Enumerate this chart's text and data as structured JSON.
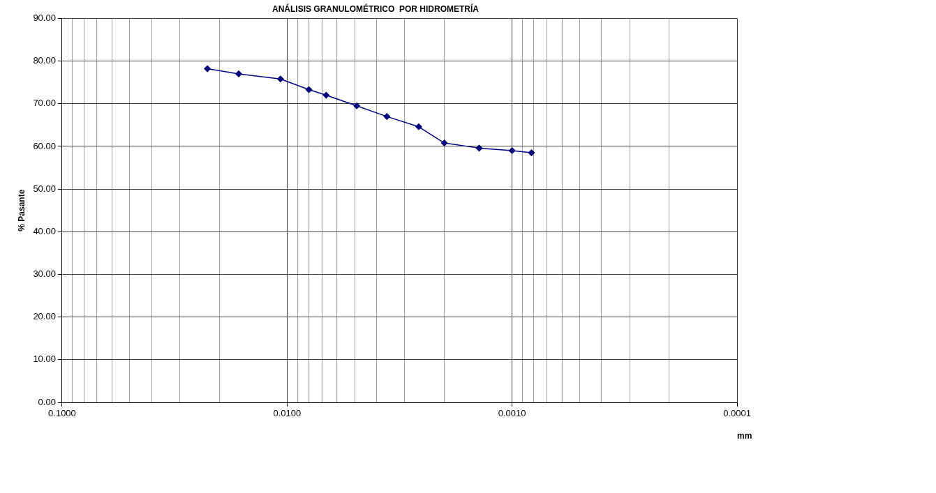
{
  "chart_data": {
    "type": "line",
    "title": "ANÁLISIS GRANULOMÉTRICO  POR HIDROMETRÍA",
    "xlabel": "mm",
    "ylabel": "% Pasante",
    "x": [
      0.0226,
      0.0164,
      0.0107,
      0.008,
      0.0067,
      0.0049,
      0.0036,
      0.0026,
      0.002,
      0.0014,
      0.001,
      0.00082
    ],
    "series": [
      {
        "color": "#000080",
        "values": [
          78.2,
          77.0,
          75.8,
          73.3,
          72.0,
          69.5,
          67.0,
          64.6,
          60.8,
          59.6,
          59.0,
          58.5
        ]
      }
    ],
    "log": "x",
    "xlim": [
      0.1,
      0.0001
    ],
    "xticks": [
      {
        "value": 0.1,
        "label": "0.1000"
      },
      {
        "value": 0.09,
        "label": null
      },
      {
        "value": 0.08,
        "label": null
      },
      {
        "value": 0.07,
        "label": null
      },
      {
        "value": 0.06,
        "label": null
      },
      {
        "value": 0.05,
        "label": null
      },
      {
        "value": 0.04,
        "label": null
      },
      {
        "value": 0.03,
        "label": null
      },
      {
        "value": 0.02,
        "label": null
      },
      {
        "value": 0.01,
        "label": "0.0100"
      },
      {
        "value": 0.009,
        "label": null
      },
      {
        "value": 0.008,
        "label": null
      },
      {
        "value": 0.007,
        "label": null
      },
      {
        "value": 0.006,
        "label": null
      },
      {
        "value": 0.005,
        "label": null
      },
      {
        "value": 0.004,
        "label": null
      },
      {
        "value": 0.003,
        "label": null
      },
      {
        "value": 0.002,
        "label": null
      },
      {
        "value": 0.001,
        "label": "0.0010"
      },
      {
        "value": 0.0009,
        "label": null
      },
      {
        "value": 0.0008,
        "label": null
      },
      {
        "value": 0.0007,
        "label": null
      },
      {
        "value": 0.0006,
        "label": null
      },
      {
        "value": 0.0005,
        "label": null
      },
      {
        "value": 0.0004,
        "label": null
      },
      {
        "value": 0.0003,
        "label": null
      },
      {
        "value": 0.0002,
        "label": null
      },
      {
        "value": 0.0001,
        "label": "0.0001"
      }
    ],
    "ylim": [
      0,
      90
    ],
    "yticks": [
      {
        "value": 0,
        "label": "0.00"
      },
      {
        "value": 10,
        "label": "10.00"
      },
      {
        "value": 20,
        "label": "20.00"
      },
      {
        "value": 30,
        "label": "30.00"
      },
      {
        "value": 40,
        "label": "40.00"
      },
      {
        "value": 50,
        "label": "50.00"
      },
      {
        "value": 60,
        "label": "60.00"
      },
      {
        "value": 70,
        "label": "70.00"
      },
      {
        "value": 80,
        "label": "80.00"
      },
      {
        "value": 90,
        "label": "90.00"
      }
    ],
    "grid": true,
    "legend": false,
    "marker": "diamond",
    "line_style": "solid"
  }
}
